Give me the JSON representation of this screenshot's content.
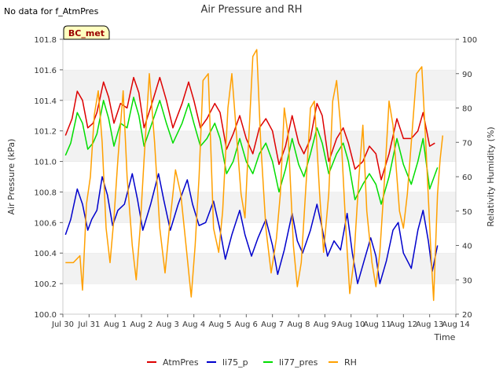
{
  "nodata_note": "No data for f_AtmPres",
  "site_label": "BC_met",
  "chart_data": {
    "type": "line",
    "title": "Air Pressure and RH",
    "xlabel": "Time",
    "ylabel_left": "Air Pressure (kPa)",
    "ylabel_right": "Relativity Humidity (%)",
    "ylim_left": [
      100.0,
      101.8
    ],
    "ylim_right": [
      20,
      100
    ],
    "x_ticks": [
      {
        "day": 0,
        "label": "Jul 30"
      },
      {
        "day": 1,
        "label": "Jul 31"
      },
      {
        "day": 2,
        "label": "Aug 1"
      },
      {
        "day": 3,
        "label": "Aug 2"
      },
      {
        "day": 4,
        "label": "Aug 3"
      },
      {
        "day": 5,
        "label": "Aug 4"
      },
      {
        "day": 6,
        "label": "Aug 5"
      },
      {
        "day": 7,
        "label": "Aug 6"
      },
      {
        "day": 8,
        "label": "Aug 7"
      },
      {
        "day": 9,
        "label": "Aug 8"
      },
      {
        "day": 10,
        "label": "Aug 9"
      },
      {
        "day": 11,
        "label": "Aug 10"
      },
      {
        "day": 12,
        "label": "Aug 11"
      },
      {
        "day": 13,
        "label": "Aug 12"
      },
      {
        "day": 14,
        "label": "Aug 13"
      },
      {
        "day": 15,
        "label": "Aug 14"
      }
    ],
    "y_ticks_left": [
      "100.0",
      "100.2",
      "100.4",
      "100.6",
      "100.8",
      "101.0",
      "101.2",
      "101.4",
      "101.6",
      "101.8"
    ],
    "y_ticks_right": [
      "20",
      "30",
      "40",
      "50",
      "60",
      "70",
      "80",
      "90",
      "100"
    ],
    "grid": "horizontal bands",
    "legend": "bottom",
    "series": [
      {
        "name": "AtmPres",
        "axis": "left",
        "color": "#dd0000",
        "points": [
          [
            0.1,
            101.17
          ],
          [
            0.35,
            101.28
          ],
          [
            0.55,
            101.46
          ],
          [
            0.75,
            101.4
          ],
          [
            0.95,
            101.22
          ],
          [
            1.15,
            101.25
          ],
          [
            1.3,
            101.32
          ],
          [
            1.55,
            101.52
          ],
          [
            1.75,
            101.42
          ],
          [
            1.95,
            101.25
          ],
          [
            2.2,
            101.38
          ],
          [
            2.45,
            101.35
          ],
          [
            2.7,
            101.55
          ],
          [
            2.9,
            101.45
          ],
          [
            3.1,
            101.22
          ],
          [
            3.4,
            101.38
          ],
          [
            3.7,
            101.55
          ],
          [
            3.95,
            101.4
          ],
          [
            4.2,
            101.22
          ],
          [
            4.55,
            101.38
          ],
          [
            4.8,
            101.52
          ],
          [
            5.0,
            101.4
          ],
          [
            5.25,
            101.22
          ],
          [
            5.5,
            101.28
          ],
          [
            5.8,
            101.38
          ],
          [
            6.0,
            101.32
          ],
          [
            6.25,
            101.08
          ],
          [
            6.5,
            101.18
          ],
          [
            6.75,
            101.3
          ],
          [
            7.0,
            101.15
          ],
          [
            7.25,
            101.05
          ],
          [
            7.5,
            101.22
          ],
          [
            7.75,
            101.28
          ],
          [
            8.0,
            101.2
          ],
          [
            8.25,
            100.98
          ],
          [
            8.5,
            101.1
          ],
          [
            8.75,
            101.3
          ],
          [
            9.0,
            101.12
          ],
          [
            9.2,
            101.05
          ],
          [
            9.45,
            101.15
          ],
          [
            9.7,
            101.38
          ],
          [
            9.9,
            101.3
          ],
          [
            10.15,
            101.0
          ],
          [
            10.45,
            101.15
          ],
          [
            10.7,
            101.22
          ],
          [
            10.9,
            101.12
          ],
          [
            11.15,
            100.95
          ],
          [
            11.45,
            101.0
          ],
          [
            11.7,
            101.1
          ],
          [
            11.95,
            101.05
          ],
          [
            12.15,
            100.88
          ],
          [
            12.45,
            101.05
          ],
          [
            12.75,
            101.28
          ],
          [
            13.0,
            101.15
          ],
          [
            13.3,
            101.15
          ],
          [
            13.55,
            101.2
          ],
          [
            13.75,
            101.32
          ],
          [
            14.0,
            101.1
          ],
          [
            14.2,
            101.12
          ]
        ]
      },
      {
        "name": "li75_p",
        "axis": "left",
        "color": "#0000cc",
        "points": [
          [
            0.1,
            100.52
          ],
          [
            0.3,
            100.62
          ],
          [
            0.55,
            100.82
          ],
          [
            0.75,
            100.72
          ],
          [
            0.95,
            100.55
          ],
          [
            1.1,
            100.62
          ],
          [
            1.3,
            100.68
          ],
          [
            1.5,
            100.9
          ],
          [
            1.7,
            100.78
          ],
          [
            1.9,
            100.58
          ],
          [
            2.1,
            100.68
          ],
          [
            2.35,
            100.72
          ],
          [
            2.65,
            100.92
          ],
          [
            2.85,
            100.75
          ],
          [
            3.05,
            100.55
          ],
          [
            3.35,
            100.72
          ],
          [
            3.65,
            100.92
          ],
          [
            3.85,
            100.75
          ],
          [
            4.1,
            100.55
          ],
          [
            4.4,
            100.72
          ],
          [
            4.75,
            100.88
          ],
          [
            4.95,
            100.72
          ],
          [
            5.2,
            100.58
          ],
          [
            5.45,
            100.6
          ],
          [
            5.75,
            100.74
          ],
          [
            6.0,
            100.55
          ],
          [
            6.2,
            100.36
          ],
          [
            6.45,
            100.52
          ],
          [
            6.75,
            100.68
          ],
          [
            6.95,
            100.52
          ],
          [
            7.2,
            100.38
          ],
          [
            7.45,
            100.5
          ],
          [
            7.75,
            100.62
          ],
          [
            8.0,
            100.45
          ],
          [
            8.2,
            100.26
          ],
          [
            8.45,
            100.42
          ],
          [
            8.75,
            100.66
          ],
          [
            8.95,
            100.48
          ],
          [
            9.15,
            100.4
          ],
          [
            9.45,
            100.55
          ],
          [
            9.7,
            100.72
          ],
          [
            9.9,
            100.56
          ],
          [
            10.1,
            100.38
          ],
          [
            10.35,
            100.48
          ],
          [
            10.6,
            100.42
          ],
          [
            10.85,
            100.66
          ],
          [
            11.05,
            100.4
          ],
          [
            11.25,
            100.2
          ],
          [
            11.5,
            100.35
          ],
          [
            11.75,
            100.5
          ],
          [
            11.95,
            100.38
          ],
          [
            12.1,
            100.2
          ],
          [
            12.35,
            100.35
          ],
          [
            12.6,
            100.55
          ],
          [
            12.8,
            100.6
          ],
          [
            13.0,
            100.4
          ],
          [
            13.3,
            100.3
          ],
          [
            13.55,
            100.55
          ],
          [
            13.75,
            100.68
          ],
          [
            13.95,
            100.48
          ],
          [
            14.1,
            100.28
          ],
          [
            14.3,
            100.45
          ]
        ]
      },
      {
        "name": "li77_pres",
        "axis": "left",
        "color": "#00dd00",
        "points": [
          [
            0.1,
            101.04
          ],
          [
            0.3,
            101.12
          ],
          [
            0.55,
            101.32
          ],
          [
            0.75,
            101.25
          ],
          [
            0.95,
            101.08
          ],
          [
            1.15,
            101.12
          ],
          [
            1.3,
            101.18
          ],
          [
            1.55,
            101.4
          ],
          [
            1.75,
            101.28
          ],
          [
            1.95,
            101.1
          ],
          [
            2.2,
            101.25
          ],
          [
            2.45,
            101.22
          ],
          [
            2.7,
            101.42
          ],
          [
            2.9,
            101.3
          ],
          [
            3.1,
            101.1
          ],
          [
            3.4,
            101.25
          ],
          [
            3.7,
            101.4
          ],
          [
            3.95,
            101.25
          ],
          [
            4.2,
            101.12
          ],
          [
            4.55,
            101.25
          ],
          [
            4.8,
            101.38
          ],
          [
            5.0,
            101.25
          ],
          [
            5.25,
            101.1
          ],
          [
            5.5,
            101.15
          ],
          [
            5.8,
            101.25
          ],
          [
            6.0,
            101.15
          ],
          [
            6.25,
            100.92
          ],
          [
            6.5,
            101.0
          ],
          [
            6.75,
            101.15
          ],
          [
            7.0,
            101.0
          ],
          [
            7.25,
            100.92
          ],
          [
            7.5,
            101.05
          ],
          [
            7.75,
            101.12
          ],
          [
            8.0,
            101.0
          ],
          [
            8.25,
            100.8
          ],
          [
            8.5,
            100.95
          ],
          [
            8.75,
            101.15
          ],
          [
            9.0,
            100.98
          ],
          [
            9.2,
            100.9
          ],
          [
            9.45,
            101.05
          ],
          [
            9.7,
            101.22
          ],
          [
            9.9,
            101.12
          ],
          [
            10.15,
            100.92
          ],
          [
            10.45,
            101.05
          ],
          [
            10.7,
            101.12
          ],
          [
            10.9,
            101.0
          ],
          [
            11.15,
            100.75
          ],
          [
            11.45,
            100.85
          ],
          [
            11.7,
            100.92
          ],
          [
            11.95,
            100.85
          ],
          [
            12.15,
            100.72
          ],
          [
            12.45,
            100.9
          ],
          [
            12.75,
            101.15
          ],
          [
            13.0,
            100.98
          ],
          [
            13.3,
            100.85
          ],
          [
            13.55,
            101.0
          ],
          [
            13.75,
            101.15
          ],
          [
            14.0,
            100.82
          ],
          [
            14.3,
            100.96
          ]
        ]
      },
      {
        "name": "RH",
        "axis": "right",
        "color": "#ffa000",
        "points": [
          [
            0.1,
            35
          ],
          [
            0.4,
            35
          ],
          [
            0.65,
            37
          ],
          [
            0.75,
            27
          ],
          [
            0.9,
            52
          ],
          [
            1.05,
            60
          ],
          [
            1.2,
            78
          ],
          [
            1.35,
            85
          ],
          [
            1.5,
            70
          ],
          [
            1.65,
            45
          ],
          [
            1.8,
            35
          ],
          [
            1.95,
            48
          ],
          [
            2.1,
            65
          ],
          [
            2.3,
            85
          ],
          [
            2.45,
            60
          ],
          [
            2.65,
            40
          ],
          [
            2.8,
            30
          ],
          [
            2.95,
            45
          ],
          [
            3.1,
            65
          ],
          [
            3.3,
            90
          ],
          [
            3.5,
            70
          ],
          [
            3.7,
            45
          ],
          [
            3.9,
            32
          ],
          [
            4.1,
            48
          ],
          [
            4.3,
            62
          ],
          [
            4.5,
            55
          ],
          [
            4.7,
            40
          ],
          [
            4.9,
            25
          ],
          [
            5.05,
            40
          ],
          [
            5.2,
            60
          ],
          [
            5.35,
            88
          ],
          [
            5.55,
            90
          ],
          [
            5.75,
            45
          ],
          [
            5.95,
            38
          ],
          [
            6.1,
            50
          ],
          [
            6.3,
            80
          ],
          [
            6.45,
            90
          ],
          [
            6.6,
            75
          ],
          [
            6.8,
            55
          ],
          [
            6.95,
            48
          ],
          [
            7.1,
            72
          ],
          [
            7.25,
            95
          ],
          [
            7.4,
            97
          ],
          [
            7.55,
            70
          ],
          [
            7.75,
            45
          ],
          [
            7.95,
            32
          ],
          [
            8.15,
            42
          ],
          [
            8.3,
            55
          ],
          [
            8.45,
            80
          ],
          [
            8.6,
            72
          ],
          [
            8.8,
            40
          ],
          [
            8.95,
            28
          ],
          [
            9.1,
            35
          ],
          [
            9.3,
            60
          ],
          [
            9.45,
            80
          ],
          [
            9.6,
            82
          ],
          [
            9.8,
            55
          ],
          [
            9.95,
            38
          ],
          [
            10.15,
            55
          ],
          [
            10.3,
            82
          ],
          [
            10.45,
            88
          ],
          [
            10.6,
            75
          ],
          [
            10.8,
            45
          ],
          [
            10.95,
            26
          ],
          [
            11.1,
            35
          ],
          [
            11.3,
            60
          ],
          [
            11.45,
            75
          ],
          [
            11.6,
            50
          ],
          [
            11.8,
            35
          ],
          [
            11.95,
            28
          ],
          [
            12.1,
            38
          ],
          [
            12.3,
            62
          ],
          [
            12.45,
            82
          ],
          [
            12.6,
            75
          ],
          [
            12.85,
            50
          ],
          [
            13.0,
            45
          ],
          [
            13.15,
            55
          ],
          [
            13.35,
            75
          ],
          [
            13.5,
            90
          ],
          [
            13.7,
            92
          ],
          [
            13.85,
            70
          ],
          [
            14.05,
            38
          ],
          [
            14.15,
            24
          ],
          [
            14.3,
            55
          ],
          [
            14.4,
            65
          ],
          [
            14.5,
            72
          ]
        ]
      }
    ]
  }
}
